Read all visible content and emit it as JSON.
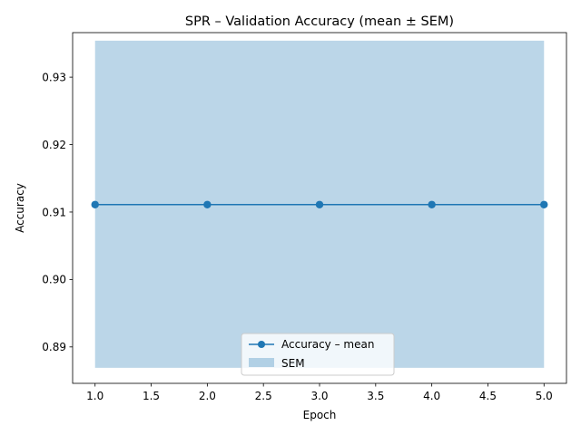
{
  "chart_data": {
    "type": "line",
    "title": "SPR – Validation Accuracy (mean ± SEM)",
    "xlabel": "Epoch",
    "ylabel": "Accuracy",
    "xlim": [
      0.8,
      5.2
    ],
    "ylim": [
      0.8846,
      0.9366
    ],
    "xticks": [
      1.0,
      1.5,
      2.0,
      2.5,
      3.0,
      3.5,
      4.0,
      4.5,
      5.0
    ],
    "xtick_labels": [
      "1.0",
      "1.5",
      "2.0",
      "2.5",
      "3.0",
      "3.5",
      "4.0",
      "4.5",
      "5.0"
    ],
    "yticks": [
      0.89,
      0.9,
      0.91,
      0.92,
      0.93
    ],
    "ytick_labels": [
      "0.89",
      "0.90",
      "0.91",
      "0.92",
      "0.93"
    ],
    "series": [
      {
        "name": "Accuracy – mean",
        "x": [
          1,
          2,
          3,
          4,
          5
        ],
        "y": [
          0.9111,
          0.9111,
          0.9111,
          0.9111,
          0.9111
        ],
        "color": "#1f77b4"
      }
    ],
    "band": {
      "name": "SEM",
      "x": [
        1,
        2,
        3,
        4,
        5
      ],
      "lower": [
        0.8869,
        0.8869,
        0.8869,
        0.8869,
        0.8869
      ],
      "upper": [
        0.9354,
        0.9354,
        0.9354,
        0.9354,
        0.9354
      ],
      "color": "#1f77b4",
      "opacity": 0.3
    },
    "grid": false,
    "legend_position": "bottom-center"
  }
}
